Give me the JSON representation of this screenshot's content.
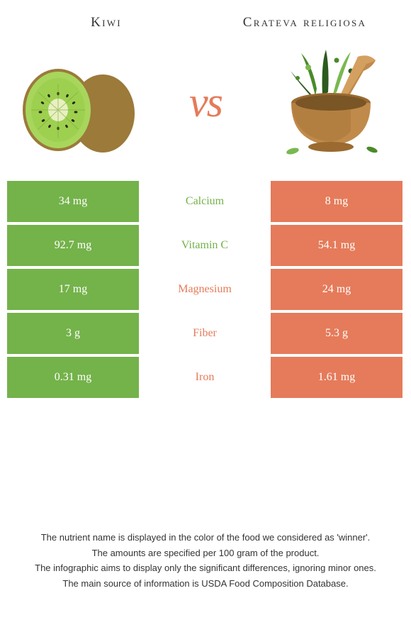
{
  "header": {
    "left_title": "Kiwi",
    "right_title": "Crateva religiosa",
    "vs_text": "vs"
  },
  "colors": {
    "left_bar": "#74b24a",
    "right_bar": "#e57b5a",
    "kiwi_skin": "#9b7a3a",
    "kiwi_flesh": "#a8d65c",
    "kiwi_center": "#e8f0c0",
    "kiwi_seed": "#2a2a10",
    "herb_green_dark": "#2d5a1e",
    "herb_green_mid": "#4a8a2a",
    "herb_green_light": "#7ab850",
    "mortar_wood": "#c08a4a",
    "mortar_wood_dark": "#9a6a30"
  },
  "rows": [
    {
      "left": "34 mg",
      "label": "Calcium",
      "right": "8 mg",
      "winner": "left"
    },
    {
      "left": "92.7 mg",
      "label": "Vitamin C",
      "right": "54.1 mg",
      "winner": "left"
    },
    {
      "left": "17 mg",
      "label": "Magnesium",
      "right": "24 mg",
      "winner": "right"
    },
    {
      "left": "3 g",
      "label": "Fiber",
      "right": "5.3 g",
      "winner": "right"
    },
    {
      "left": "0.31 mg",
      "label": "Iron",
      "right": "1.61 mg",
      "winner": "right"
    }
  ],
  "footer": {
    "line1": "The nutrient name is displayed in the color of the food we considered as 'winner'.",
    "line2": "The amounts are specified per 100 gram of the product.",
    "line3": "The infographic aims to display only the significant differences, ignoring minor ones.",
    "line4": "The main source of information is USDA Food Composition Database."
  }
}
